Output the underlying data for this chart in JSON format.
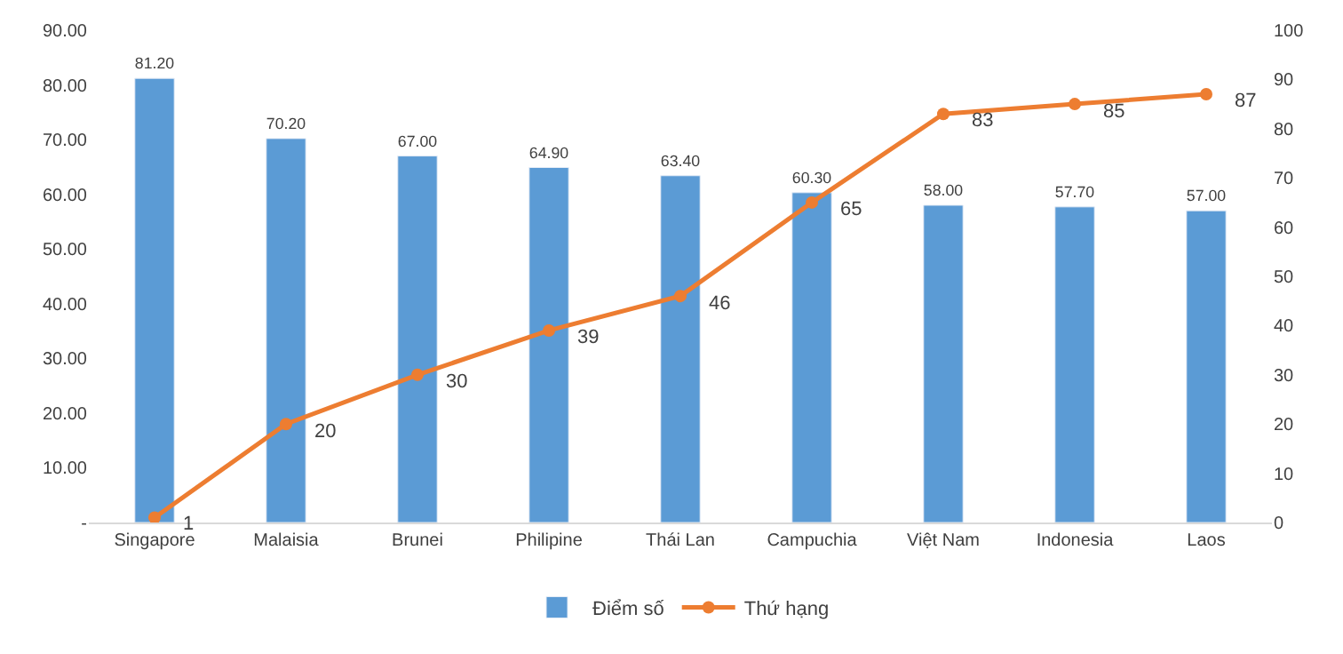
{
  "chart_data": {
    "type": "bar",
    "categories": [
      "Singapore",
      "Malaisia",
      "Brunei",
      "Philipine",
      "Thái Lan",
      "Campuchia",
      "Việt Nam",
      "Indonesia",
      "Laos"
    ],
    "series": [
      {
        "name": "Điểm số",
        "type": "bar",
        "color": "#5b9bd5",
        "values": [
          81.2,
          70.2,
          67.0,
          64.9,
          63.4,
          60.3,
          58.0,
          57.7,
          57.0
        ],
        "value_labels": [
          "81.20",
          "70.20",
          "67.00",
          "64.90",
          "63.40",
          "60.30",
          "58.00",
          "57.70",
          "57.00"
        ]
      },
      {
        "name": "Thứ hạng",
        "type": "line",
        "axis": "y2",
        "color": "#ed7d31",
        "marker": "circle",
        "data_labels": true,
        "values": [
          1,
          20,
          30,
          39,
          46,
          65,
          83,
          85,
          87
        ]
      }
    ],
    "ylim": [
      0,
      90
    ],
    "yticks": [
      {
        "value": 0,
        "label": "-"
      },
      {
        "value": 10,
        "label": "10.00"
      },
      {
        "value": 20,
        "label": "20.00"
      },
      {
        "value": 30,
        "label": "30.00"
      },
      {
        "value": 40,
        "label": "40.00"
      },
      {
        "value": 50,
        "label": "50.00"
      },
      {
        "value": 60,
        "label": "60.00"
      },
      {
        "value": 70,
        "label": "70.00"
      },
      {
        "value": 80,
        "label": "80.00"
      },
      {
        "value": 90,
        "label": "90.00"
      }
    ],
    "y2lim": [
      0,
      100
    ],
    "y2ticks": [
      0,
      10,
      20,
      30,
      40,
      50,
      60,
      70,
      80,
      90,
      100
    ],
    "grid": false,
    "legend": "bottom"
  }
}
